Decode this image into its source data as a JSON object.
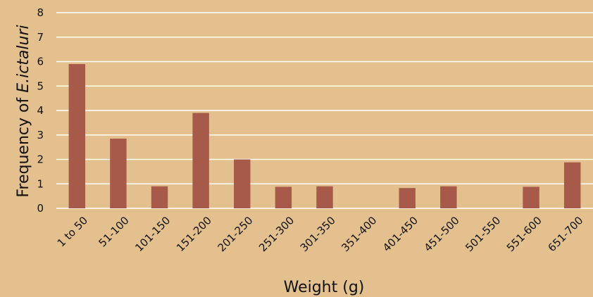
{
  "chart_data": {
    "type": "bar",
    "xlabel": "Weight (g)",
    "ylabel_prefix": "Frequency of ",
    "ylabel_species": "E.ictaluri",
    "ylim": [
      0,
      8
    ],
    "yticks": [
      "0",
      "1",
      "2",
      "3",
      "4",
      "5",
      "6",
      "7",
      "8"
    ],
    "grid": true,
    "bar_color": "#a85a4a",
    "background_color": "#e3c08d",
    "categories": [
      "1 to 50",
      "51-100",
      "101-150",
      "151-200",
      "201-250",
      "251-300",
      "301-350",
      "351-400",
      "401-450",
      "451-500",
      "501-550",
      "551-600",
      "651-700"
    ],
    "values": [
      5.9,
      2.85,
      0.9,
      3.9,
      2.0,
      0.88,
      0.9,
      0,
      0.83,
      0.9,
      0,
      0.88,
      1.88
    ]
  }
}
